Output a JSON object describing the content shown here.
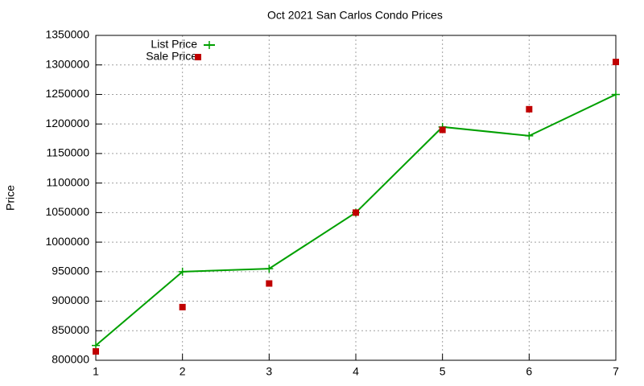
{
  "chart_data": {
    "type": "line",
    "title": "Oct 2021 San Carlos Condo Prices",
    "y_label": "Price",
    "x": [
      1,
      2,
      3,
      4,
      5,
      6,
      7
    ],
    "series": [
      {
        "name": "List Price",
        "color": "#00a000",
        "style": "linespoints",
        "values": [
          825000,
          950000,
          955000,
          1050000,
          1195000,
          1180000,
          1250000
        ]
      },
      {
        "name": "Sale Price",
        "color": "#c00000",
        "style": "points",
        "values": [
          815000,
          890000,
          930000,
          1050000,
          1190000,
          1225000,
          1305000
        ]
      }
    ],
    "xlim": [
      1,
      7
    ],
    "xticks": [
      1,
      2,
      3,
      4,
      5,
      6,
      7
    ],
    "ylim": [
      800000,
      1350000
    ],
    "yticks": [
      800000,
      850000,
      900000,
      950000,
      1000000,
      1050000,
      1100000,
      1150000,
      1200000,
      1250000,
      1300000,
      1350000
    ],
    "grid": true,
    "legend": "top-left"
  }
}
